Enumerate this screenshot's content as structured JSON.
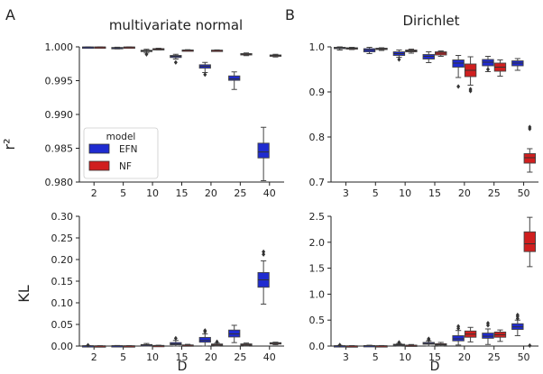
{
  "figure": {
    "panel_labels": [
      "A",
      "B"
    ],
    "colors": {
      "EFN": "#1f2bd0",
      "NF": "#d01f1f"
    }
  },
  "chart_data": [
    {
      "type": "box",
      "panel": "A",
      "title": "multivariate normal",
      "xlabel": "",
      "ylabel": "r²",
      "categories": [
        "2",
        "5",
        "10",
        "15",
        "20",
        "25",
        "40"
      ],
      "ylim": [
        0.98,
        1.0
      ],
      "yticks": [
        "0.980",
        "0.985",
        "0.990",
        "0.995",
        "1.000"
      ],
      "legend": {
        "title": "model",
        "entries": [
          "EFN",
          "NF"
        ],
        "position": "lower-left"
      },
      "series": [
        {
          "name": "EFN",
          "boxes": [
            {
              "q1": 0.99995,
              "med": 0.99997,
              "q3": 0.99998,
              "lo": 0.99993,
              "hi": 0.99999,
              "out": []
            },
            {
              "q1": 0.99978,
              "med": 0.99985,
              "q3": 0.99991,
              "lo": 0.9997,
              "hi": 0.99995,
              "out": []
            },
            {
              "q1": 0.9993,
              "med": 0.9994,
              "q3": 0.9995,
              "lo": 0.9991,
              "hi": 0.99965,
              "out": [
                0.9989
              ]
            },
            {
              "q1": 0.99843,
              "med": 0.99858,
              "q3": 0.99873,
              "lo": 0.9982,
              "hi": 0.9989,
              "out": [
                0.9977
              ]
            },
            {
              "q1": 0.99685,
              "med": 0.99713,
              "q3": 0.99735,
              "lo": 0.9962,
              "hi": 0.9977,
              "out": [
                0.9959
              ]
            },
            {
              "q1": 0.99505,
              "med": 0.99525,
              "q3": 0.9957,
              "lo": 0.9937,
              "hi": 0.9963,
              "out": []
            },
            {
              "q1": 0.98357,
              "med": 0.98445,
              "q3": 0.98575,
              "lo": 0.9802,
              "hi": 0.9881,
              "out": []
            }
          ]
        },
        {
          "name": "NF",
          "boxes": [
            {
              "q1": 0.99995,
              "med": 0.99997,
              "q3": 0.99998,
              "lo": 0.99993,
              "hi": 0.99999,
              "out": []
            },
            {
              "q1": 0.99994,
              "med": 0.99996,
              "q3": 0.99998,
              "lo": 0.9999,
              "hi": 0.99999,
              "out": []
            },
            {
              "q1": 0.99962,
              "med": 0.99968,
              "q3": 0.99974,
              "lo": 0.99955,
              "hi": 0.9998,
              "out": []
            },
            {
              "q1": 0.99946,
              "med": 0.9995,
              "q3": 0.99954,
              "lo": 0.9994,
              "hi": 0.99958,
              "out": []
            },
            {
              "q1": 0.99945,
              "med": 0.99948,
              "q3": 0.99951,
              "lo": 0.9994,
              "hi": 0.99955,
              "out": []
            },
            {
              "q1": 0.99885,
              "med": 0.99893,
              "q3": 0.999,
              "lo": 0.9987,
              "hi": 0.9991,
              "out": []
            },
            {
              "q1": 0.99863,
              "med": 0.99872,
              "q3": 0.9988,
              "lo": 0.9985,
              "hi": 0.9989,
              "out": []
            }
          ]
        }
      ]
    },
    {
      "type": "box",
      "panel": "B",
      "title": "Dirichlet",
      "xlabel": "",
      "ylabel": "",
      "categories": [
        "3",
        "5",
        "10",
        "15",
        "20",
        "25",
        "50"
      ],
      "ylim": [
        0.7,
        1.0
      ],
      "yticks": [
        "0.7",
        "0.8",
        "0.9",
        "1.0"
      ],
      "series": [
        {
          "name": "EFN",
          "boxes": [
            {
              "q1": 0.996,
              "med": 0.998,
              "q3": 0.999,
              "lo": 0.993,
              "hi": 1.0,
              "out": []
            },
            {
              "q1": 0.989,
              "med": 0.993,
              "q3": 0.996,
              "lo": 0.985,
              "hi": 0.999,
              "out": []
            },
            {
              "q1": 0.981,
              "med": 0.985,
              "q3": 0.989,
              "lo": 0.977,
              "hi": 0.993,
              "out": [
                0.972
              ]
            },
            {
              "q1": 0.973,
              "med": 0.979,
              "q3": 0.983,
              "lo": 0.965,
              "hi": 0.989,
              "out": []
            },
            {
              "q1": 0.955,
              "med": 0.964,
              "q3": 0.971,
              "lo": 0.932,
              "hi": 0.981,
              "out": [
                0.912
              ]
            },
            {
              "q1": 0.958,
              "med": 0.966,
              "q3": 0.972,
              "lo": 0.945,
              "hi": 0.979,
              "out": [
                0.95
              ]
            },
            {
              "q1": 0.958,
              "med": 0.964,
              "q3": 0.969,
              "lo": 0.948,
              "hi": 0.974,
              "out": []
            }
          ]
        },
        {
          "name": "NF",
          "boxes": [
            {
              "q1": 0.996,
              "med": 0.997,
              "q3": 0.998,
              "lo": 0.994,
              "hi": 0.999,
              "out": []
            },
            {
              "q1": 0.994,
              "med": 0.996,
              "q3": 0.997,
              "lo": 0.992,
              "hi": 0.998,
              "out": []
            },
            {
              "q1": 0.989,
              "med": 0.991,
              "q3": 0.993,
              "lo": 0.986,
              "hi": 0.995,
              "out": []
            },
            {
              "q1": 0.982,
              "med": 0.986,
              "q3": 0.989,
              "lo": 0.979,
              "hi": 0.991,
              "out": []
            },
            {
              "q1": 0.934,
              "med": 0.948,
              "q3": 0.962,
              "lo": 0.915,
              "hi": 0.978,
              "out": [
                0.906,
                0.902
              ]
            },
            {
              "q1": 0.946,
              "med": 0.955,
              "q3": 0.964,
              "lo": 0.935,
              "hi": 0.971,
              "out": []
            },
            {
              "q1": 0.742,
              "med": 0.754,
              "q3": 0.763,
              "lo": 0.722,
              "hi": 0.774,
              "out": [
                0.818,
                0.822
              ]
            }
          ]
        }
      ]
    },
    {
      "type": "box",
      "panel": "A",
      "title": "",
      "xlabel": "D",
      "ylabel": "KL",
      "categories": [
        "2",
        "5",
        "10",
        "15",
        "20",
        "25",
        "40"
      ],
      "ylim": [
        0.0,
        0.3
      ],
      "yticks": [
        "0.00",
        "0.05",
        "0.10",
        "0.15",
        "0.20",
        "0.25",
        "0.30"
      ],
      "series": [
        {
          "name": "EFN",
          "boxes": [
            {
              "q1": 0.0003,
              "med": 0.0005,
              "q3": 0.0008,
              "lo": 0.0,
              "hi": 0.0012,
              "out": [
                0.002
              ]
            },
            {
              "q1": 0.0004,
              "med": 0.0006,
              "q3": 0.0009,
              "lo": 0.0,
              "hi": 0.0013,
              "out": []
            },
            {
              "q1": 0.0015,
              "med": 0.0025,
              "q3": 0.0035,
              "lo": 0.0,
              "hi": 0.006,
              "out": []
            },
            {
              "q1": 0.003,
              "med": 0.005,
              "q3": 0.008,
              "lo": 0.0,
              "hi": 0.013,
              "out": [
                0.018
              ]
            },
            {
              "q1": 0.009,
              "med": 0.013,
              "q3": 0.02,
              "lo": 0.0,
              "hi": 0.028,
              "out": [
                0.033,
                0.036
              ]
            },
            {
              "q1": 0.021,
              "med": 0.028,
              "q3": 0.037,
              "lo": 0.008,
              "hi": 0.048,
              "out": []
            },
            {
              "q1": 0.136,
              "med": 0.153,
              "q3": 0.17,
              "lo": 0.097,
              "hi": 0.197,
              "out": [
                0.212,
                0.218
              ]
            }
          ]
        },
        {
          "name": "NF",
          "boxes": [
            {
              "q1": 0.0002,
              "med": 0.0003,
              "q3": 0.0005,
              "lo": 0.0,
              "hi": 0.0008,
              "out": []
            },
            {
              "q1": 0.0002,
              "med": 0.0004,
              "q3": 0.0006,
              "lo": 0.0,
              "hi": 0.0009,
              "out": []
            },
            {
              "q1": 0.0006,
              "med": 0.001,
              "q3": 0.0015,
              "lo": 0.0,
              "hi": 0.002,
              "out": []
            },
            {
              "q1": 0.001,
              "med": 0.0018,
              "q3": 0.0026,
              "lo": 0.0,
              "hi": 0.004,
              "out": []
            },
            {
              "q1": 0.0025,
              "med": 0.0035,
              "q3": 0.0048,
              "lo": 0.0,
              "hi": 0.007,
              "out": [
                0.01
              ]
            },
            {
              "q1": 0.0025,
              "med": 0.0037,
              "q3": 0.005,
              "lo": 0.0,
              "hi": 0.007,
              "out": []
            },
            {
              "q1": 0.005,
              "med": 0.0065,
              "q3": 0.0078,
              "lo": 0.003,
              "hi": 0.009,
              "out": []
            }
          ]
        }
      ]
    },
    {
      "type": "box",
      "panel": "B",
      "title": "",
      "xlabel": "D",
      "ylabel": "",
      "categories": [
        "3",
        "5",
        "10",
        "15",
        "20",
        "25",
        "50"
      ],
      "ylim": [
        0.0,
        2.5
      ],
      "yticks": [
        "0.0",
        "0.5",
        "1.0",
        "1.5",
        "2.0",
        "2.5"
      ],
      "series": [
        {
          "name": "EFN",
          "boxes": [
            {
              "q1": 0.002,
              "med": 0.004,
              "q3": 0.007,
              "lo": 0.0,
              "hi": 0.012,
              "out": [
                0.02
              ]
            },
            {
              "q1": 0.003,
              "med": 0.006,
              "q3": 0.01,
              "lo": 0.0,
              "hi": 0.016,
              "out": []
            },
            {
              "q1": 0.015,
              "med": 0.025,
              "q3": 0.035,
              "lo": 0.0,
              "hi": 0.05,
              "out": [
                0.07
              ]
            },
            {
              "q1": 0.035,
              "med": 0.05,
              "q3": 0.07,
              "lo": 0.0,
              "hi": 0.1,
              "out": [
                0.12,
                0.14
              ]
            },
            {
              "q1": 0.1,
              "med": 0.14,
              "q3": 0.2,
              "lo": 0.02,
              "hi": 0.3,
              "out": [
                0.34,
                0.38
              ]
            },
            {
              "q1": 0.15,
              "med": 0.19,
              "q3": 0.25,
              "lo": 0.03,
              "hi": 0.33,
              "out": [
                0.4,
                0.44
              ]
            },
            {
              "q1": 0.32,
              "med": 0.37,
              "q3": 0.43,
              "lo": 0.2,
              "hi": 0.5,
              "out": [
                0.53,
                0.57,
                0.6
              ]
            }
          ]
        },
        {
          "name": "NF",
          "boxes": [
            {
              "q1": 0.001,
              "med": 0.002,
              "q3": 0.004,
              "lo": 0.0,
              "hi": 0.008,
              "out": []
            },
            {
              "q1": 0.002,
              "med": 0.004,
              "q3": 0.006,
              "lo": 0.0,
              "hi": 0.01,
              "out": []
            },
            {
              "q1": 0.008,
              "med": 0.012,
              "q3": 0.018,
              "lo": 0.0,
              "hi": 0.03,
              "out": []
            },
            {
              "q1": 0.02,
              "med": 0.03,
              "q3": 0.045,
              "lo": 0.0,
              "hi": 0.07,
              "out": []
            },
            {
              "q1": 0.17,
              "med": 0.23,
              "q3": 0.29,
              "lo": 0.08,
              "hi": 0.36,
              "out": []
            },
            {
              "q1": 0.17,
              "med": 0.22,
              "q3": 0.27,
              "lo": 0.09,
              "hi": 0.31,
              "out": []
            },
            {
              "q1": 1.82,
              "med": 1.97,
              "q3": 2.2,
              "lo": 1.53,
              "hi": 2.48,
              "out": [
                0.01
              ]
            }
          ]
        }
      ]
    }
  ]
}
